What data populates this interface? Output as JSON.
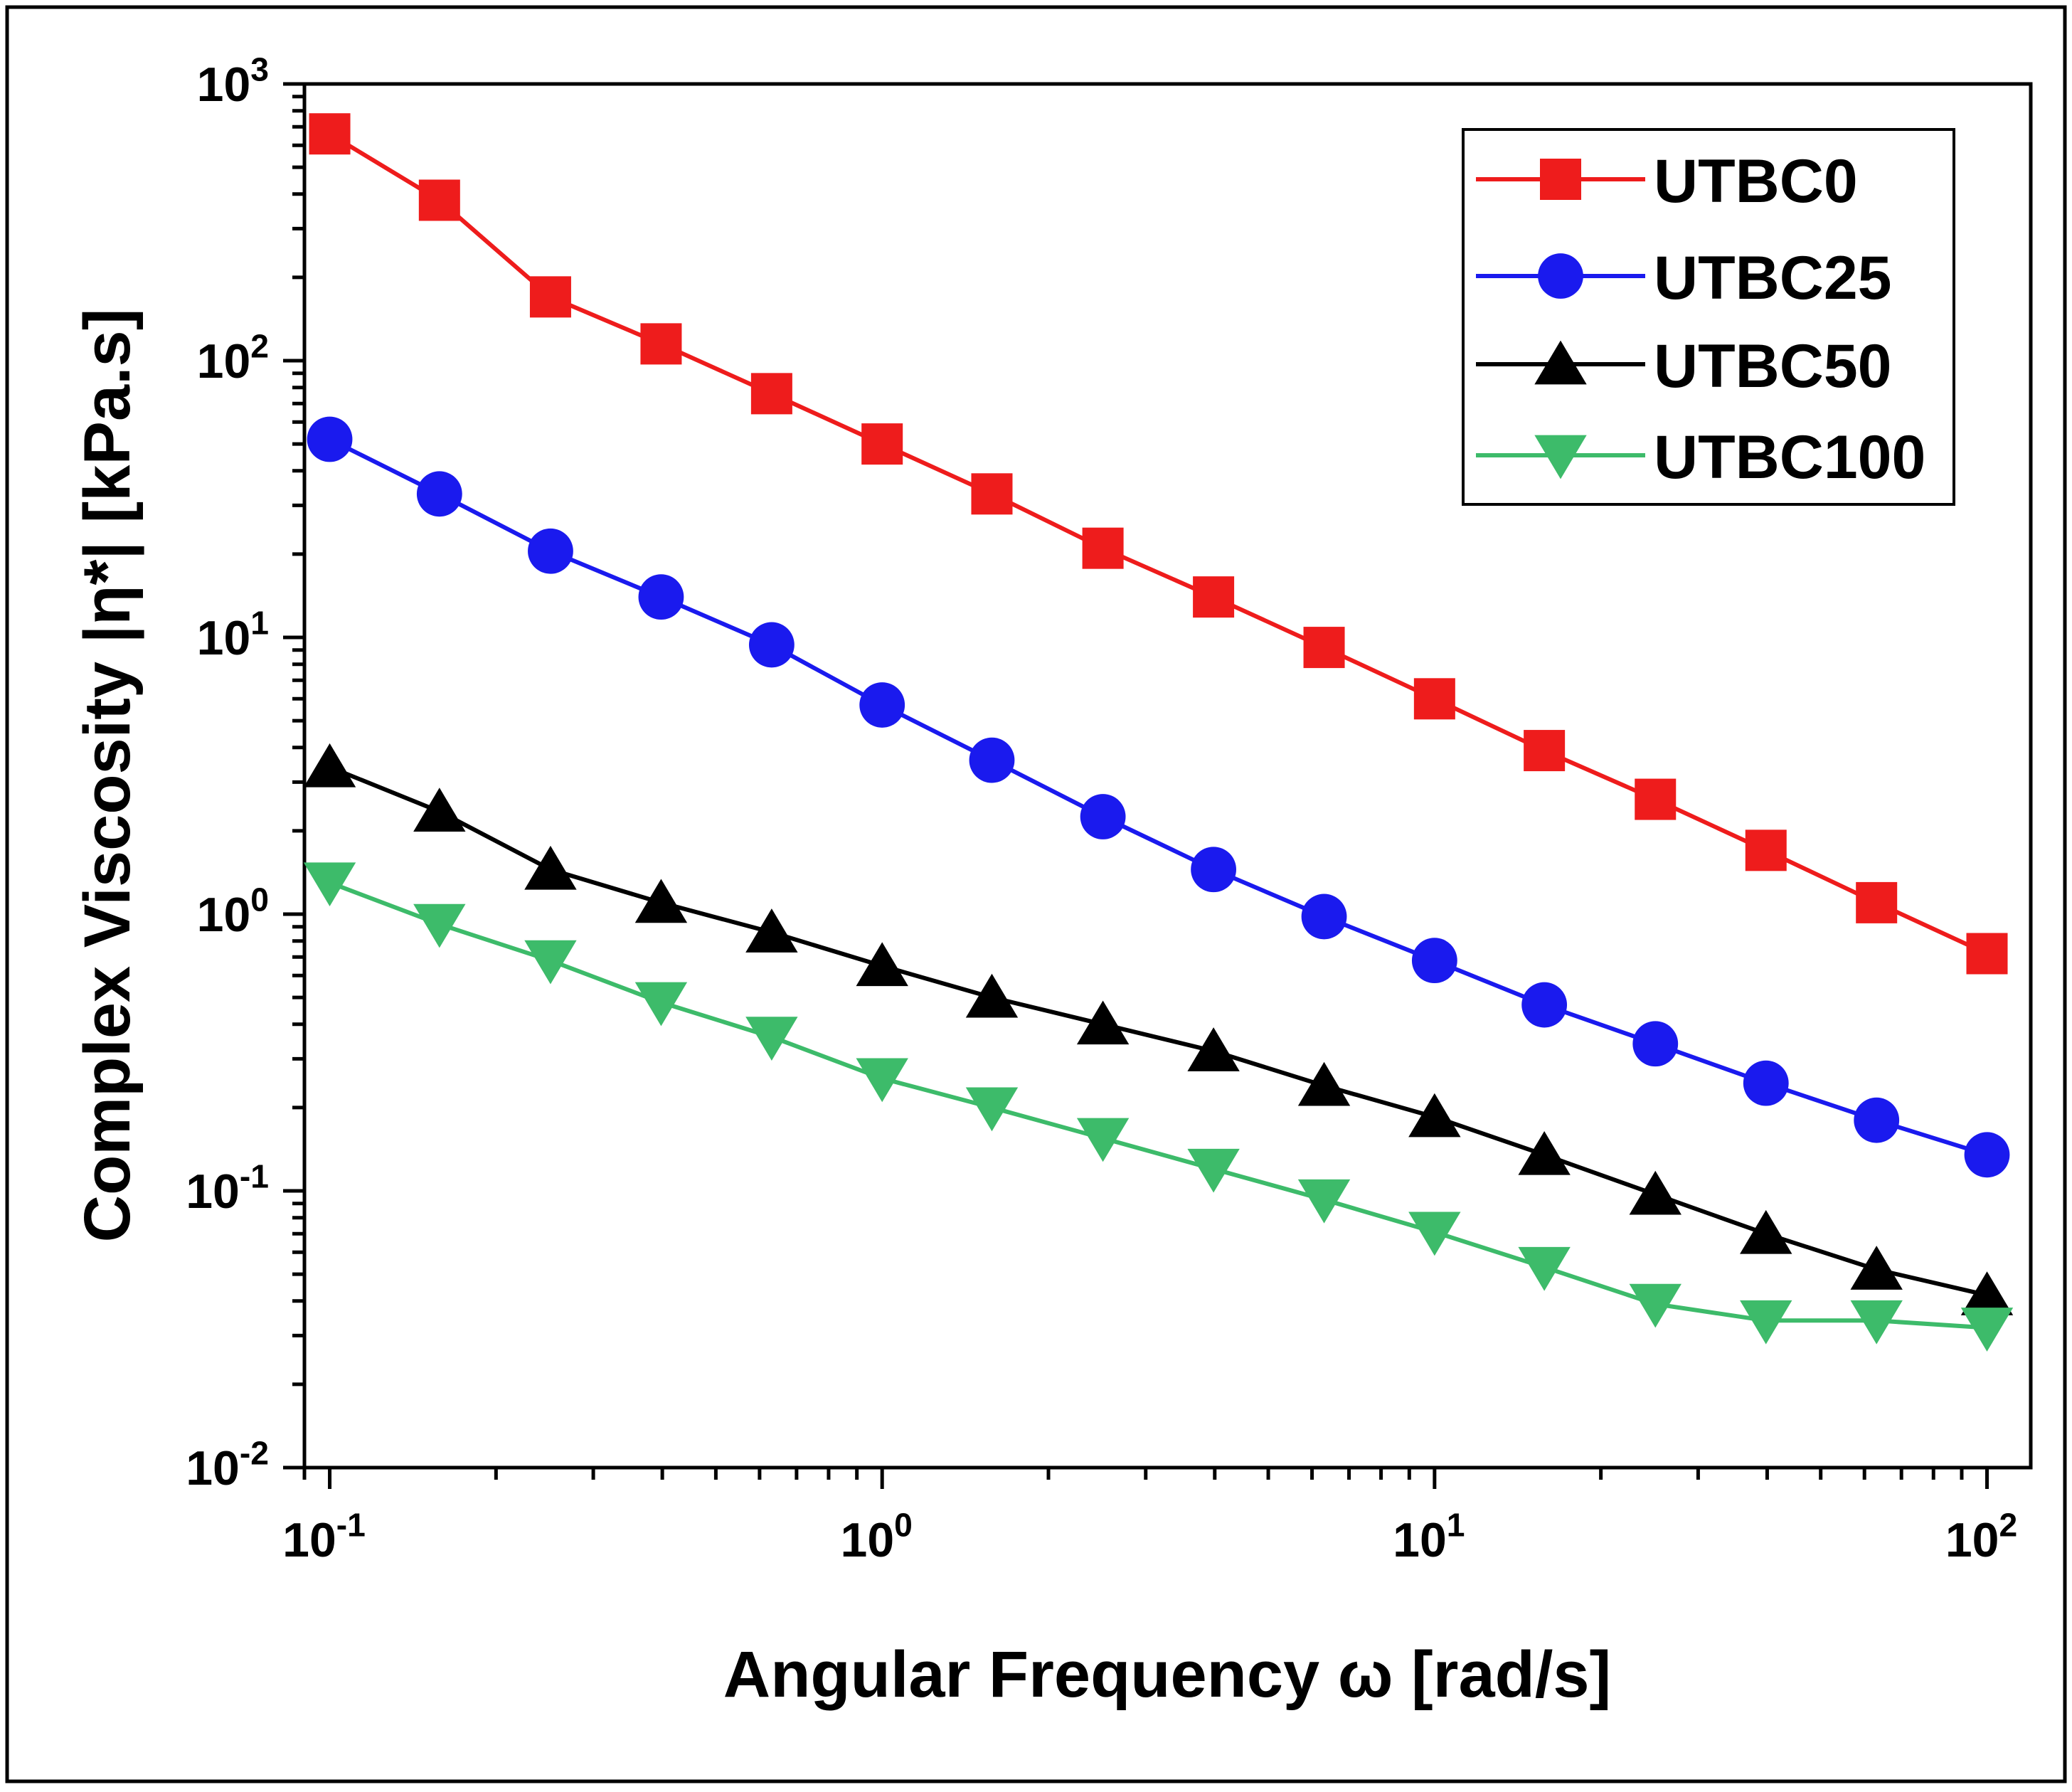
{
  "chart_data": {
    "type": "line",
    "xscale": "log",
    "yscale": "log",
    "xlim": [
      0.09,
      120
    ],
    "ylim": [
      0.01,
      1000
    ],
    "xlabel": "Angular Frequency ω [rad/s]",
    "ylabel": "Complex Viscosity |η*| [kPa.s]",
    "x_ticks": [
      {
        "value": 0.1,
        "base": "10",
        "exp": "-1"
      },
      {
        "value": 1,
        "base": "10",
        "exp": "0"
      },
      {
        "value": 10,
        "base": "10",
        "exp": "1"
      },
      {
        "value": 100,
        "base": "10",
        "exp": "2"
      }
    ],
    "y_ticks": [
      {
        "value": 0.01,
        "base": "10",
        "exp": "-2"
      },
      {
        "value": 0.1,
        "base": "10",
        "exp": "-1"
      },
      {
        "value": 1,
        "base": "10",
        "exp": "0"
      },
      {
        "value": 10,
        "base": "10",
        "exp": "1"
      },
      {
        "value": 100,
        "base": "10",
        "exp": "2"
      },
      {
        "value": 1000,
        "base": "10",
        "exp": "3"
      }
    ],
    "x": [
      0.1,
      0.158,
      0.251,
      0.398,
      0.631,
      1,
      1.58,
      2.51,
      3.98,
      6.31,
      10,
      15.8,
      25.1,
      39.8,
      63.1,
      100
    ],
    "legend_position": "top-right",
    "series": [
      {
        "name": "UTBC0",
        "color": "#ee1c1c",
        "marker": "square",
        "values": [
          660,
          380,
          170,
          115,
          76,
          50,
          33,
          21,
          14,
          9.2,
          6.0,
          3.9,
          2.6,
          1.7,
          1.1,
          0.72
        ]
      },
      {
        "name": "UTBC25",
        "color": "#1a1aee",
        "marker": "circle",
        "values": [
          52,
          33,
          20.5,
          14,
          9.4,
          5.7,
          3.6,
          2.25,
          1.45,
          0.98,
          0.68,
          0.47,
          0.34,
          0.245,
          0.18,
          0.135
        ]
      },
      {
        "name": "UTBC50",
        "color": "#000000",
        "marker": "triangle-up",
        "values": [
          3.4,
          2.35,
          1.45,
          1.1,
          0.86,
          0.65,
          0.5,
          0.4,
          0.32,
          0.24,
          0.185,
          0.135,
          0.097,
          0.07,
          0.052,
          0.042
        ]
      },
      {
        "name": "UTBC100",
        "color": "#3dbb6a",
        "marker": "triangle-down",
        "values": [
          1.3,
          0.92,
          0.68,
          0.48,
          0.36,
          0.255,
          0.2,
          0.155,
          0.12,
          0.093,
          0.071,
          0.053,
          0.039,
          0.034,
          0.034,
          0.032
        ]
      }
    ]
  }
}
